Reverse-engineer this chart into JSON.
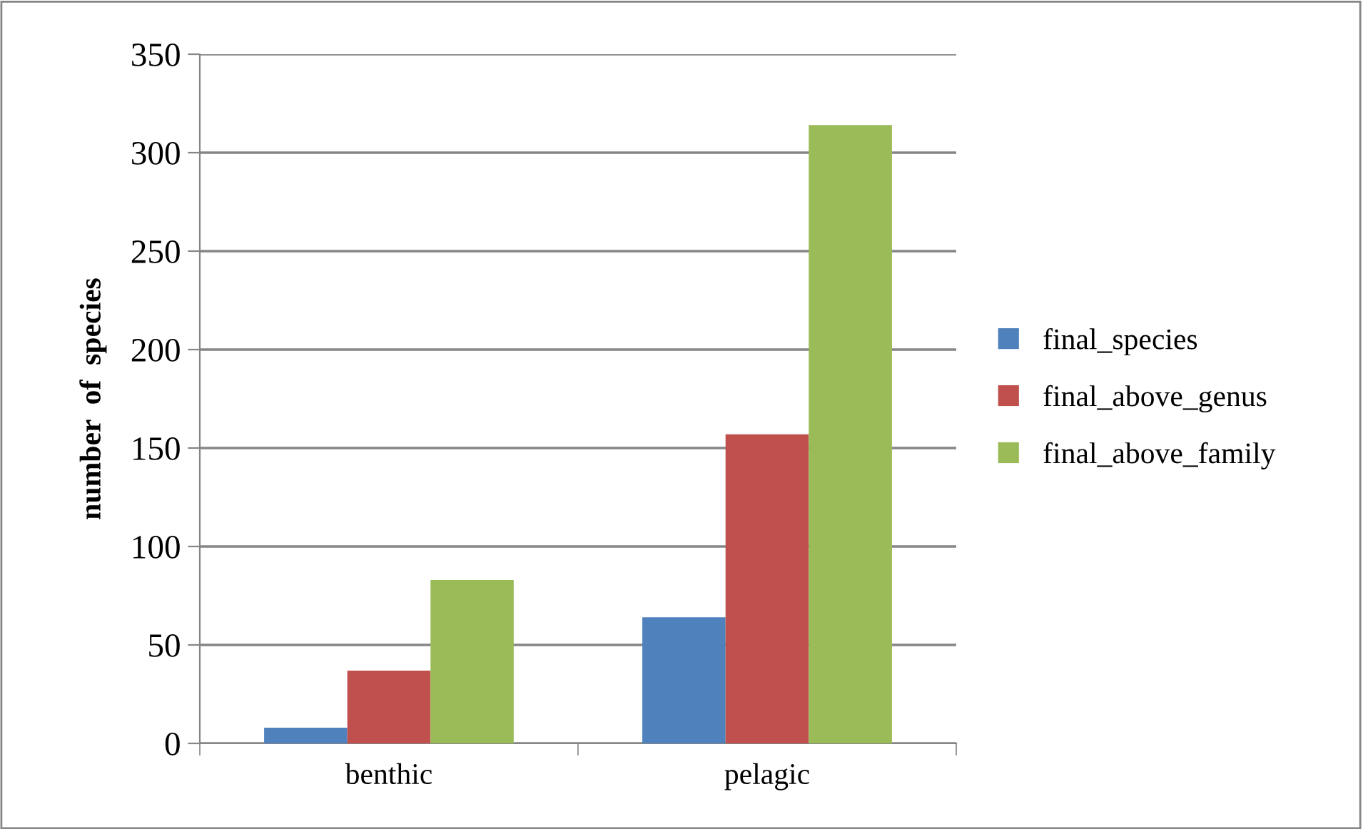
{
  "chart_data": {
    "type": "bar",
    "ylabel": "number  of  species",
    "categories": [
      "benthic",
      "pelagic"
    ],
    "series": [
      {
        "name": "final_species",
        "color": "#4f81bd",
        "values": [
          8,
          64
        ]
      },
      {
        "name": "final_above_genus",
        "color": "#c0504d",
        "values": [
          37,
          157
        ]
      },
      {
        "name": "final_above_family",
        "color": "#9bbb59",
        "values": [
          83,
          314
        ]
      }
    ],
    "ylim": [
      0,
      350
    ],
    "yticks": [
      0,
      50,
      100,
      150,
      200,
      250,
      300,
      350
    ],
    "grid": "y",
    "legend": "right"
  }
}
